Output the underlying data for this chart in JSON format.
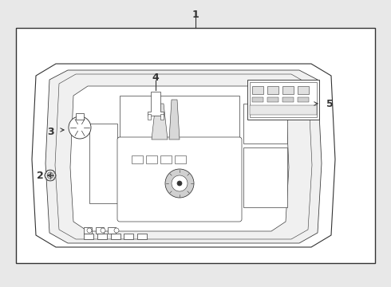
{
  "background_color": "#e8e8e8",
  "box_color": "#ffffff",
  "line_color": "#333333",
  "figsize": [
    4.9,
    3.6
  ],
  "dpi": 100
}
